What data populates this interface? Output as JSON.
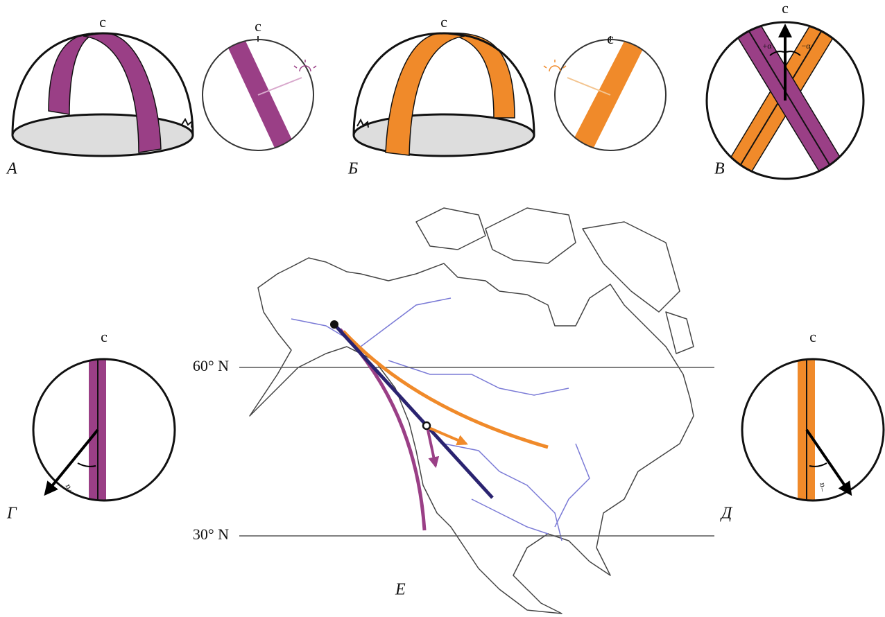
{
  "panel_labels": {
    "a": "А",
    "b": "Б",
    "v": "В",
    "g": "Г",
    "d": "Д",
    "e": "Е"
  },
  "north": {
    "a_dome": "с",
    "a_circle": "с",
    "b_dome": "с",
    "b_circle": "с",
    "v_circle": "с",
    "g_circle": "с",
    "d_circle": "с"
  },
  "angles": {
    "v_plus": "+α",
    "v_minus": "−α",
    "g": "+α",
    "d": "−α"
  },
  "latitudes": {
    "lat60": "60° N",
    "lat30": "30° N"
  }
}
